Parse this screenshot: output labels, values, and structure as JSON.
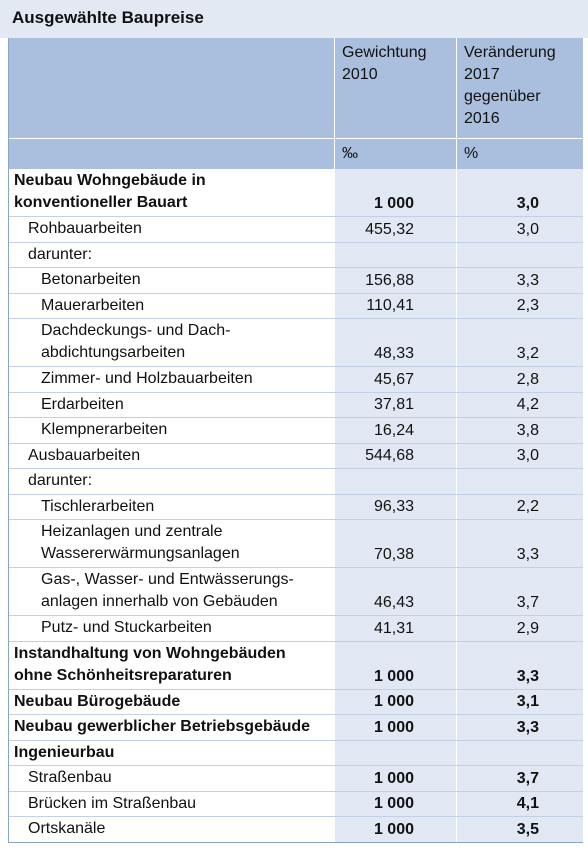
{
  "title": "Ausgewählte Baupreise",
  "header": {
    "columns": [
      [
        "Gewichtung",
        "2010"
      ],
      [
        "Veränderung",
        "2017",
        "gegenüber",
        "2016"
      ]
    ],
    "units": [
      "‰",
      "%"
    ]
  },
  "rows": [
    {
      "lines": [
        "Neubau Wohngebäude in",
        "konventioneller Bauart"
      ],
      "level": 0,
      "bold": true,
      "weight": "1 000",
      "change": "3,0",
      "bold_values": true
    },
    {
      "lines": [
        "Rohbauarbeiten"
      ],
      "level": 1,
      "bold": false,
      "weight": "455,32",
      "change": "3,0",
      "bold_values": false
    },
    {
      "lines": [
        "darunter:"
      ],
      "level": 1,
      "bold": false,
      "weight": null,
      "change": null,
      "bold_values": false
    },
    {
      "lines": [
        "Betonarbeiten"
      ],
      "level": 2,
      "bold": false,
      "weight": "156,88",
      "change": "3,3",
      "bold_values": false
    },
    {
      "lines": [
        "Mauerarbeiten"
      ],
      "level": 2,
      "bold": false,
      "weight": "110,41",
      "change": "2,3",
      "bold_values": false
    },
    {
      "lines": [
        "Dachdeckungs- und Dach-",
        "abdichtungsarbeiten"
      ],
      "level": 2,
      "bold": false,
      "weight": "48,33",
      "change": "3,2",
      "bold_values": false
    },
    {
      "lines": [
        "Zimmer- und Holzbauarbeiten"
      ],
      "level": 2,
      "bold": false,
      "weight": "45,67",
      "change": "2,8",
      "bold_values": false
    },
    {
      "lines": [
        "Erdarbeiten"
      ],
      "level": 2,
      "bold": false,
      "weight": "37,81",
      "change": "4,2",
      "bold_values": false
    },
    {
      "lines": [
        "Klempnerarbeiten"
      ],
      "level": 2,
      "bold": false,
      "weight": "16,24",
      "change": "3,8",
      "bold_values": false
    },
    {
      "lines": [
        "Ausbauarbeiten"
      ],
      "level": 1,
      "bold": false,
      "weight": "544,68",
      "change": "3,0",
      "bold_values": false
    },
    {
      "lines": [
        "darunter:"
      ],
      "level": 1,
      "bold": false,
      "weight": null,
      "change": null,
      "bold_values": false
    },
    {
      "lines": [
        "Tischlerarbeiten"
      ],
      "level": 2,
      "bold": false,
      "weight": "96,33",
      "change": "2,2",
      "bold_values": false
    },
    {
      "lines": [
        "Heizanlagen und zentrale",
        "Wassererwärmungsanlagen"
      ],
      "level": 2,
      "bold": false,
      "weight": "70,38",
      "change": "3,3",
      "bold_values": false
    },
    {
      "lines": [
        "Gas-, Wasser- und Entwässerungs-",
        "anlagen innerhalb von Gebäuden"
      ],
      "level": 2,
      "bold": false,
      "weight": "46,43",
      "change": "3,7",
      "bold_values": false
    },
    {
      "lines": [
        "Putz- und Stuckarbeiten"
      ],
      "level": 2,
      "bold": false,
      "weight": "41,31",
      "change": "2,9",
      "bold_values": false
    },
    {
      "lines": [
        "Instandhaltung von Wohngebäuden",
        "ohne Schönheitsreparaturen"
      ],
      "level": 0,
      "bold": true,
      "weight": "1 000",
      "change": "3,3",
      "bold_values": true
    },
    {
      "lines": [
        "Neubau Bürogebäude"
      ],
      "level": 0,
      "bold": true,
      "weight": "1 000",
      "change": "3,1",
      "bold_values": true
    },
    {
      "lines": [
        "Neubau gewerblicher Betriebsgebäude"
      ],
      "level": 0,
      "bold": true,
      "weight": "1 000",
      "change": "3,3",
      "bold_values": true
    },
    {
      "lines": [
        "Ingenieurbau"
      ],
      "level": 0,
      "bold": true,
      "weight": null,
      "change": null,
      "bold_values": false
    },
    {
      "lines": [
        "Straßenbau"
      ],
      "level": 1,
      "bold": false,
      "weight": "1 000",
      "change": "3,7",
      "bold_values": true
    },
    {
      "lines": [
        "Brücken im Straßenbau"
      ],
      "level": 1,
      "bold": false,
      "weight": "1 000",
      "change": "4,1",
      "bold_values": true
    },
    {
      "lines": [
        "Ortskanäle"
      ],
      "level": 1,
      "bold": false,
      "weight": "1 000",
      "change": "3,5",
      "bold_values": true
    }
  ]
}
